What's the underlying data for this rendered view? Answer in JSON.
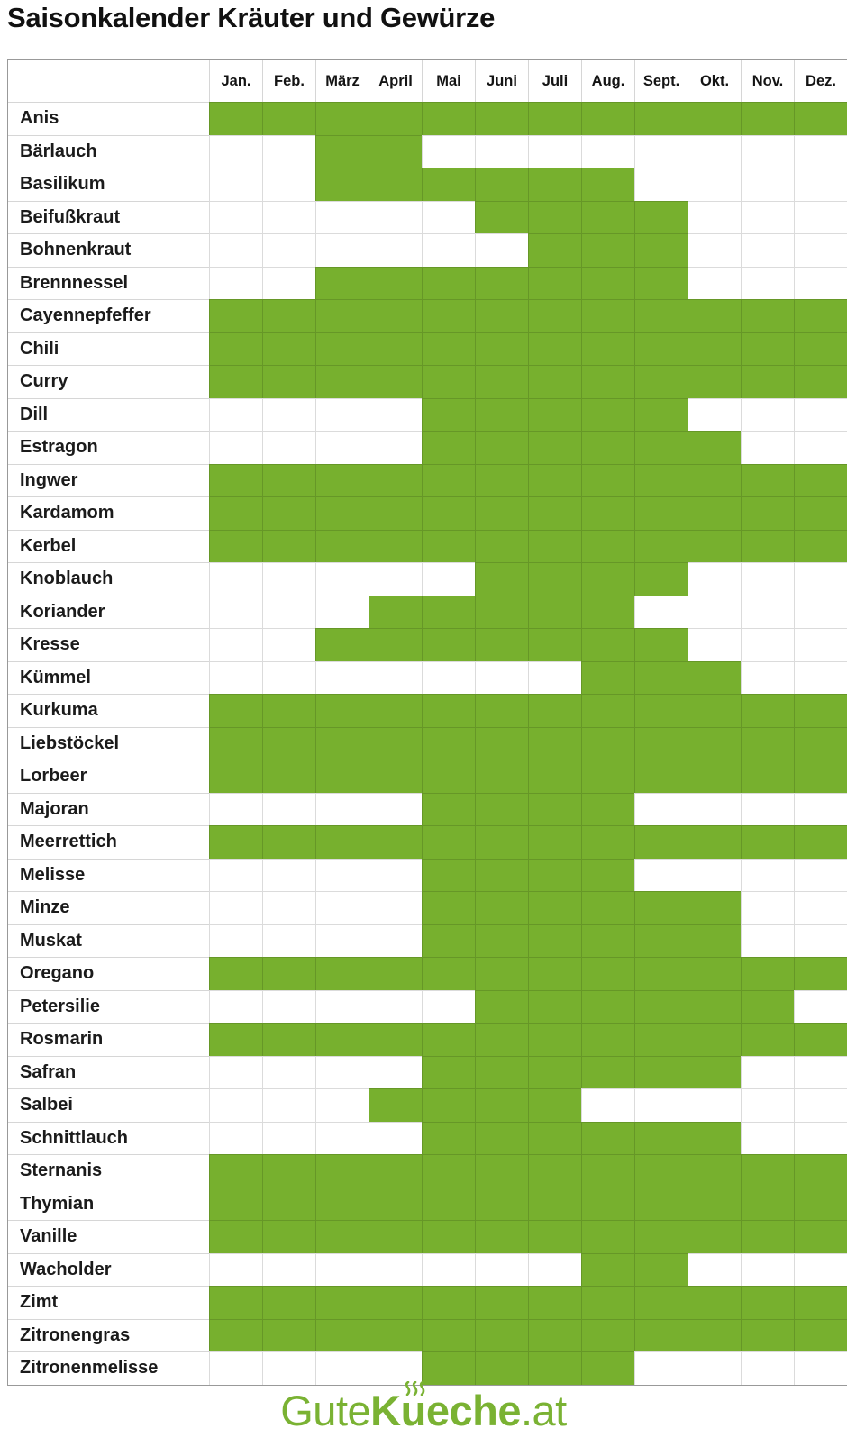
{
  "page": {
    "title": "Saisonkalender Kräuter und Gewürze"
  },
  "colors": {
    "season_green": "#77b02e",
    "logo_green": "#7ab233",
    "grid_line": "#d6d6d6",
    "outer_border": "#999999",
    "text": "#1b1b1b"
  },
  "footer": {
    "logo_gute": "Gute",
    "logo_k": "K",
    "logo_u": "u",
    "logo_eche": "eche",
    "logo_at": ".at"
  },
  "chart_data": {
    "type": "heatmap",
    "title": "Saisonkalender Kräuter und Gewürze",
    "months": [
      "Jan.",
      "Feb.",
      "März",
      "April",
      "Mai",
      "Juni",
      "Juli",
      "Aug.",
      "Sept.",
      "Okt.",
      "Nov.",
      "Dez."
    ],
    "cell_states": "season span [startMonth, endMonth] inclusive, 1=Jan. ... 12=Dez., cells in span are green",
    "rows": [
      {
        "name": "Anis",
        "season": [
          1,
          12
        ]
      },
      {
        "name": "Bärlauch",
        "season": [
          3,
          4
        ]
      },
      {
        "name": "Basilikum",
        "season": [
          3,
          8
        ]
      },
      {
        "name": "Beifußkraut",
        "season": [
          6,
          9
        ]
      },
      {
        "name": "Bohnenkraut",
        "season": [
          7,
          9
        ]
      },
      {
        "name": "Brennnessel",
        "season": [
          3,
          9
        ]
      },
      {
        "name": "Cayennepfeffer",
        "season": [
          1,
          12
        ]
      },
      {
        "name": "Chili",
        "season": [
          1,
          12
        ]
      },
      {
        "name": "Curry",
        "season": [
          1,
          12
        ]
      },
      {
        "name": "Dill",
        "season": [
          5,
          9
        ]
      },
      {
        "name": "Estragon",
        "season": [
          5,
          10
        ]
      },
      {
        "name": "Ingwer",
        "season": [
          1,
          12
        ]
      },
      {
        "name": "Kardamom",
        "season": [
          1,
          12
        ]
      },
      {
        "name": "Kerbel",
        "season": [
          1,
          12
        ]
      },
      {
        "name": "Knoblauch",
        "season": [
          6,
          9
        ]
      },
      {
        "name": "Koriander",
        "season": [
          4,
          8
        ]
      },
      {
        "name": "Kresse",
        "season": [
          3,
          9
        ]
      },
      {
        "name": "Kümmel",
        "season": [
          8,
          10
        ]
      },
      {
        "name": "Kurkuma",
        "season": [
          1,
          12
        ]
      },
      {
        "name": "Liebstöckel",
        "season": [
          1,
          12
        ]
      },
      {
        "name": "Lorbeer",
        "season": [
          1,
          12
        ]
      },
      {
        "name": "Majoran",
        "season": [
          5,
          8
        ]
      },
      {
        "name": "Meerrettich",
        "season": [
          1,
          12
        ]
      },
      {
        "name": "Melisse",
        "season": [
          5,
          8
        ]
      },
      {
        "name": "Minze",
        "season": [
          5,
          10
        ]
      },
      {
        "name": "Muskat",
        "season": [
          5,
          10
        ]
      },
      {
        "name": "Oregano",
        "season": [
          1,
          12
        ]
      },
      {
        "name": "Petersilie",
        "season": [
          6,
          11
        ]
      },
      {
        "name": "Rosmarin",
        "season": [
          1,
          12
        ]
      },
      {
        "name": "Safran",
        "season": [
          5,
          10
        ]
      },
      {
        "name": "Salbei",
        "season": [
          4,
          7
        ]
      },
      {
        "name": "Schnittlauch",
        "season": [
          5,
          10
        ]
      },
      {
        "name": "Sternanis",
        "season": [
          1,
          12
        ]
      },
      {
        "name": "Thymian",
        "season": [
          1,
          12
        ]
      },
      {
        "name": "Vanille",
        "season": [
          1,
          12
        ]
      },
      {
        "name": "Wacholder",
        "season": [
          8,
          9
        ]
      },
      {
        "name": "Zimt",
        "season": [
          1,
          12
        ]
      },
      {
        "name": "Zitronengras",
        "season": [
          1,
          12
        ]
      },
      {
        "name": "Zitronenmelisse",
        "season": [
          5,
          8
        ]
      }
    ]
  }
}
